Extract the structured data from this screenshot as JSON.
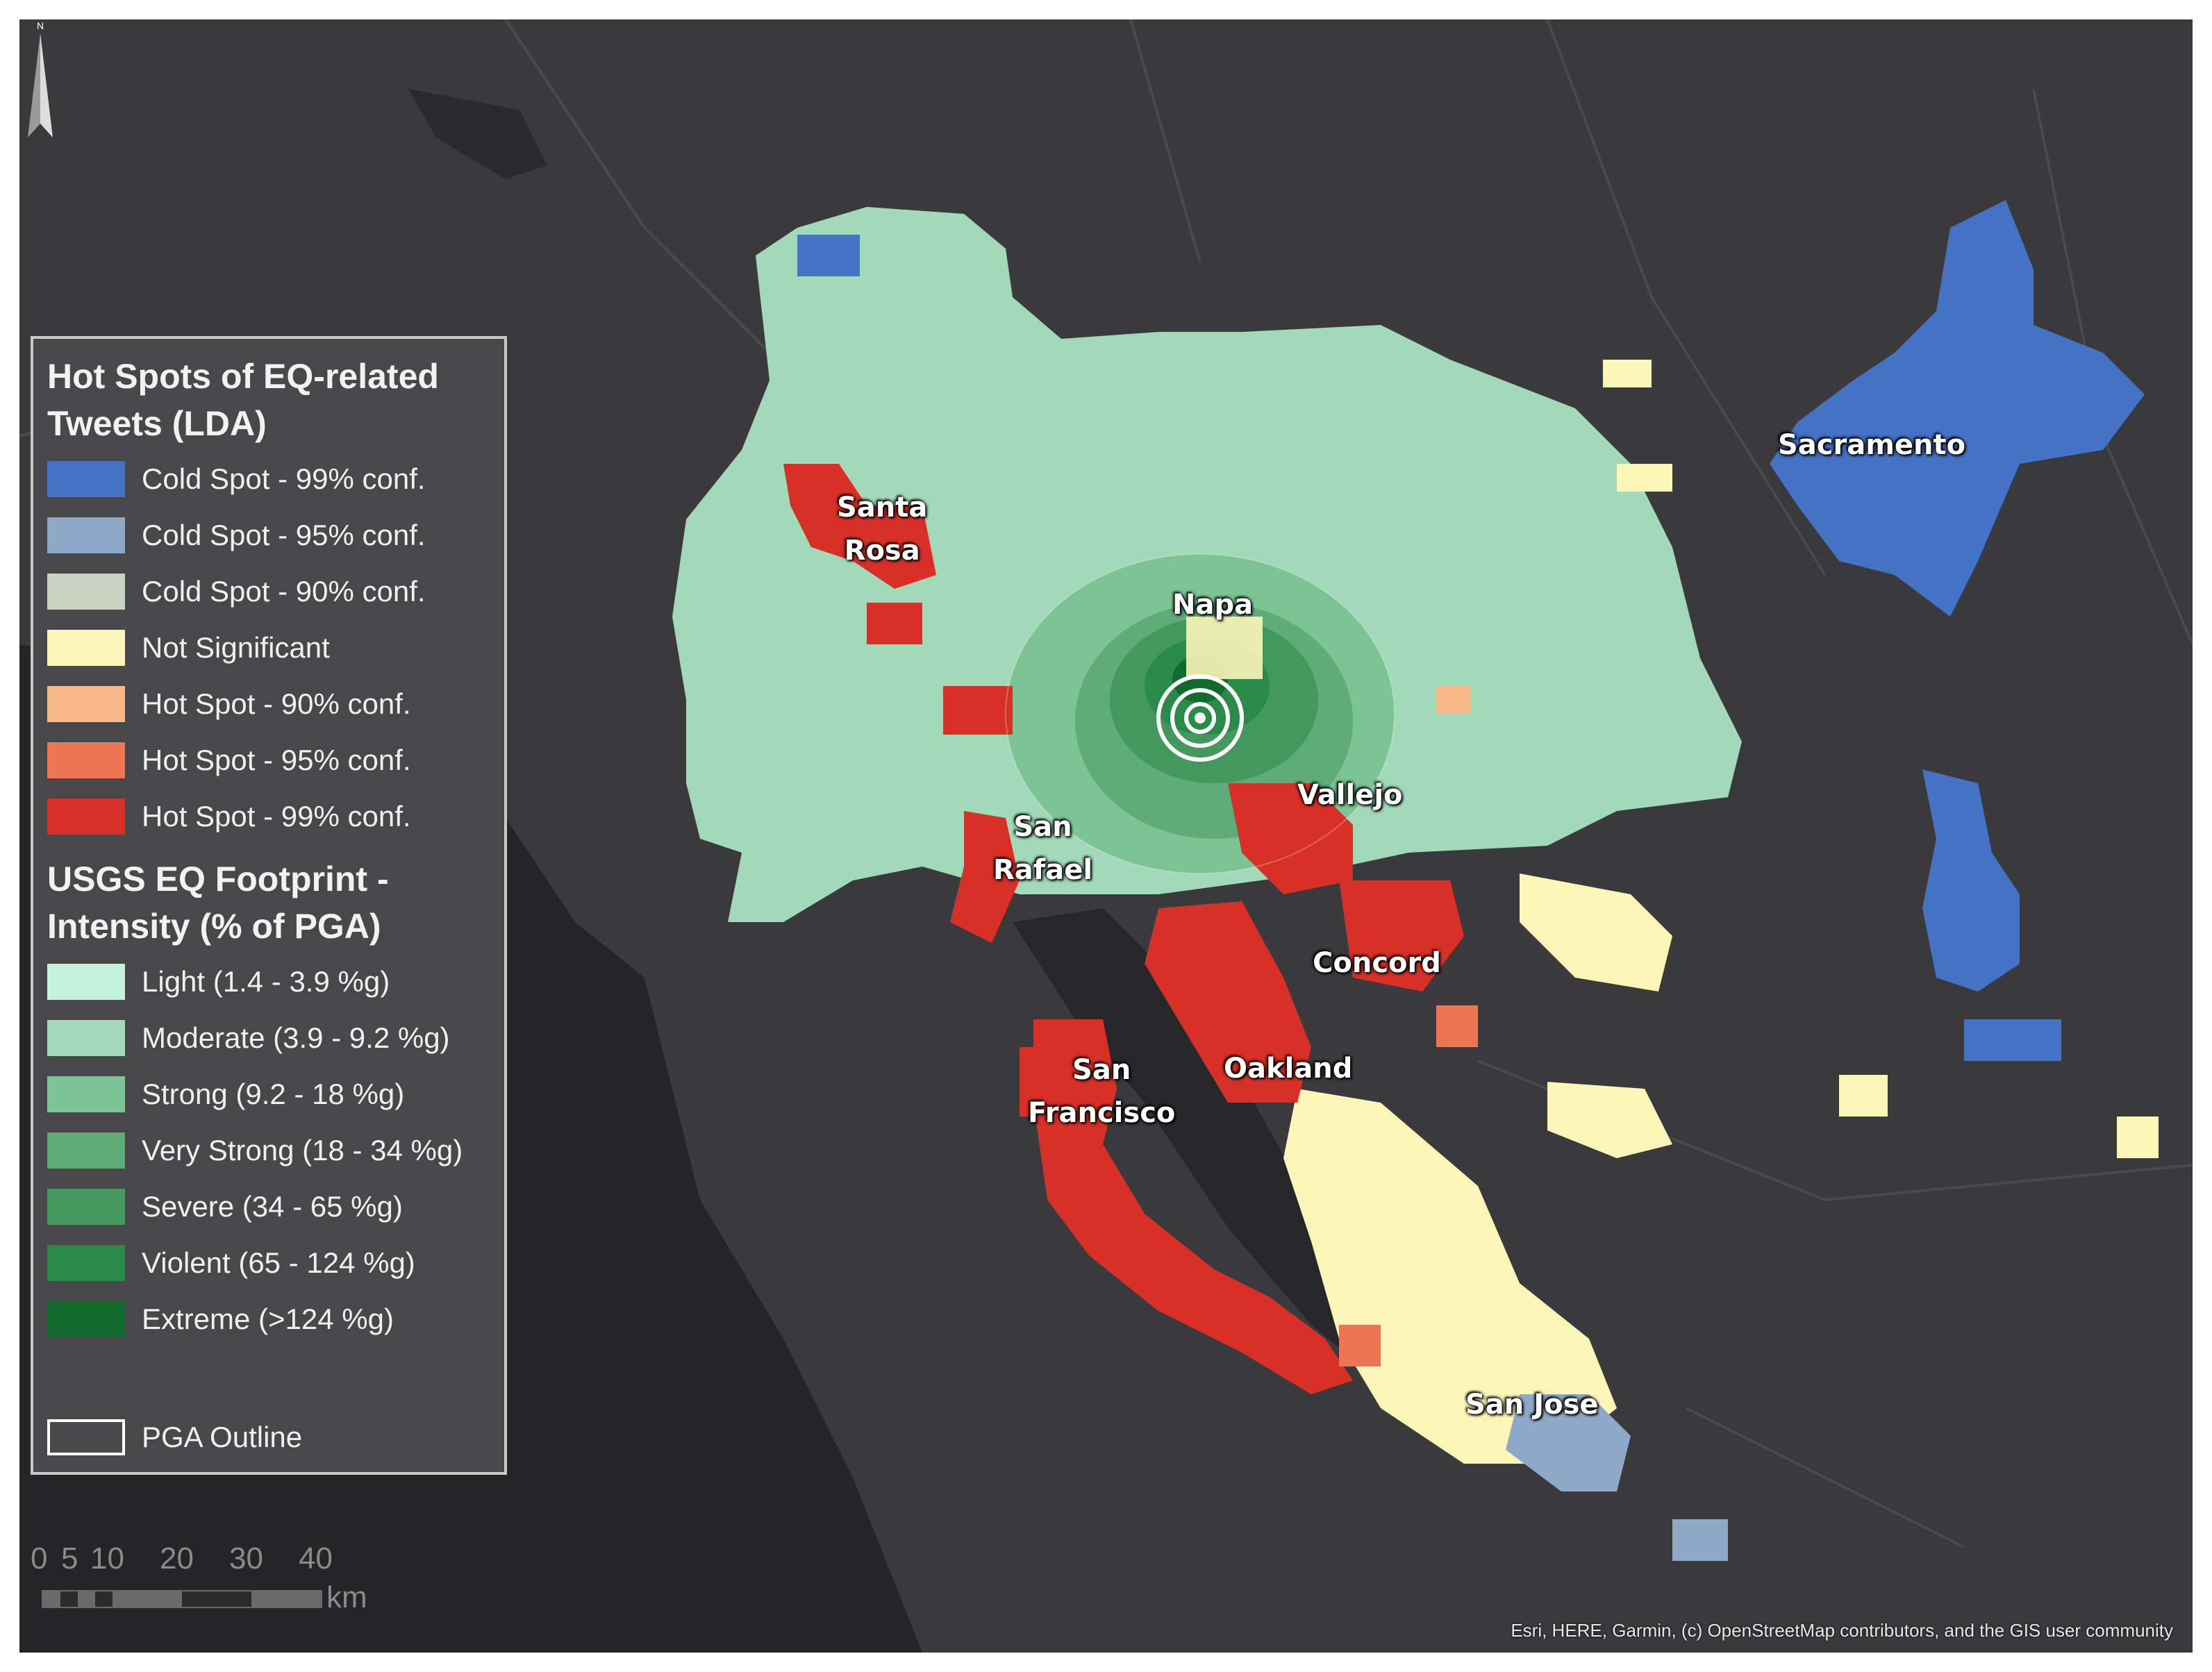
{
  "legend": {
    "title_tweets": "Hot Spots of EQ-related Tweets (LDA)",
    "tweet_items": [
      {
        "label": "Cold Spot - 99% conf.",
        "color": "#4472c4"
      },
      {
        "label": "Cold Spot - 95% conf.",
        "color": "#8ea9c8"
      },
      {
        "label": "Cold Spot - 90% conf.",
        "color": "#c9d3c2"
      },
      {
        "label": "Not Significant",
        "color": "#fbf5b8"
      },
      {
        "label": "Hot Spot - 90% conf.",
        "color": "#f7b88a"
      },
      {
        "label": "Hot Spot - 95% conf.",
        "color": "#ee7553"
      },
      {
        "label": "Hot Spot - 99% conf.",
        "color": "#d73027"
      }
    ],
    "title_usgs": "USGS EQ Footprint - Intensity (% of PGA)",
    "usgs_items": [
      {
        "label": "Light (1.4 - 3.9 %g)",
        "color": "#c4f2dc"
      },
      {
        "label": "Moderate (3.9 - 9.2 %g)",
        "color": "#a1d9b9"
      },
      {
        "label": "Strong (9.2 - 18 %g)",
        "color": "#7cc493"
      },
      {
        "label": "Very Strong (18 - 34 %g)",
        "color": "#5fac78"
      },
      {
        "label": "Severe (34 - 65 %g)",
        "color": "#43985e"
      },
      {
        "label": "Violent (65 - 124 %g)",
        "color": "#2a8a47"
      },
      {
        "label": "Extreme (>124 %g)",
        "color": "#126b2c"
      }
    ],
    "pga_outline_label": "PGA Outline"
  },
  "cities": [
    {
      "name": "Sacramento",
      "line2": ""
    },
    {
      "name": "Santa",
      "line2": "Rosa"
    },
    {
      "name": "Napa",
      "line2": ""
    },
    {
      "name": "Vallejo",
      "line2": ""
    },
    {
      "name": "San",
      "line2": "Rafael"
    },
    {
      "name": "Concord",
      "line2": ""
    },
    {
      "name": "San",
      "line2": "Francisco"
    },
    {
      "name": "Oakland",
      "line2": ""
    },
    {
      "name": "San Jose",
      "line2": ""
    }
  ],
  "scale": {
    "ticks": [
      "0",
      "5",
      "10",
      "20",
      "30",
      "40"
    ],
    "unit": "km"
  },
  "north_label": "N",
  "credits": "Esri, HERE, Garmin, (c) OpenStreetMap contributors, and the GIS user community"
}
